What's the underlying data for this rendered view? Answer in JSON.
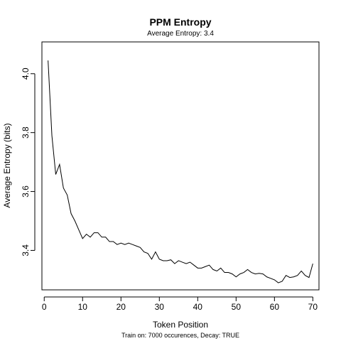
{
  "chart_data": {
    "type": "line",
    "title": "PPM Entropy",
    "subtitle": "Average Entropy: 3.4",
    "xlabel": "Token Position",
    "ylabel": "Average Entropy (bits)",
    "caption": "Train on: 7000 occurences, Decay: TRUE",
    "xlim": [
      -0.6,
      71.6
    ],
    "ylim": [
      3.266,
      4.108
    ],
    "x_ticks": [
      0,
      10,
      20,
      30,
      40,
      50,
      60,
      70
    ],
    "y_ticks": [
      3.4,
      3.6,
      3.8,
      4.0
    ],
    "x_tick_labels": [
      "0",
      "10",
      "20",
      "30",
      "40",
      "50",
      "60",
      "70"
    ],
    "y_tick_labels": [
      "3.4",
      "3.6",
      "3.8",
      "4.0"
    ],
    "grid": false,
    "line_color": "#000000",
    "series": [
      {
        "x": [
          1,
          2,
          3,
          4,
          5,
          6,
          7,
          8,
          9,
          10,
          11,
          12,
          13,
          14,
          15,
          16,
          17,
          18,
          19,
          20,
          21,
          22,
          23,
          24,
          25,
          26,
          27,
          28,
          29,
          30,
          31,
          32,
          33,
          34,
          35,
          36,
          37,
          38,
          39,
          40,
          41,
          42,
          43,
          44,
          45,
          46,
          47,
          48,
          49,
          50,
          51,
          52,
          53,
          54,
          55,
          56,
          57,
          58,
          59,
          60,
          61,
          62,
          63,
          64,
          65,
          66,
          67,
          68,
          69,
          70
        ],
        "values": [
          4.045,
          3.79,
          3.658,
          3.692,
          3.612,
          3.588,
          3.525,
          3.5,
          3.47,
          3.44,
          3.455,
          3.445,
          3.46,
          3.46,
          3.445,
          3.445,
          3.43,
          3.43,
          3.42,
          3.425,
          3.42,
          3.425,
          3.42,
          3.415,
          3.41,
          3.395,
          3.39,
          3.37,
          3.395,
          3.37,
          3.365,
          3.365,
          3.368,
          3.355,
          3.365,
          3.36,
          3.355,
          3.36,
          3.35,
          3.34,
          3.34,
          3.345,
          3.35,
          3.335,
          3.33,
          3.34,
          3.325,
          3.325,
          3.32,
          3.31,
          3.32,
          3.325,
          3.335,
          3.325,
          3.32,
          3.322,
          3.32,
          3.31,
          3.305,
          3.3,
          3.29,
          3.295,
          3.315,
          3.308,
          3.31,
          3.315,
          3.33,
          3.315,
          3.308,
          3.355
        ]
      }
    ]
  }
}
